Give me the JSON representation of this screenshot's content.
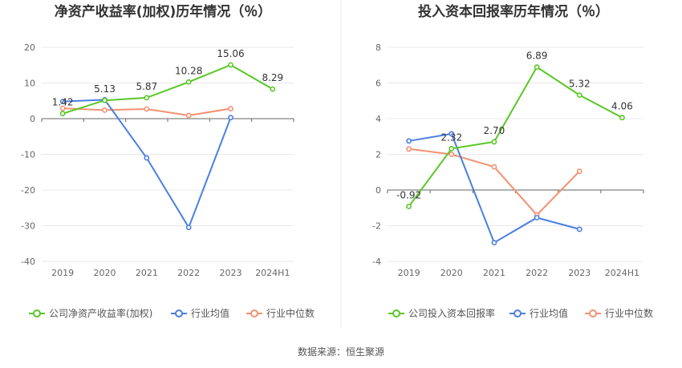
{
  "source": "数据来源：恒生聚源",
  "colors": {
    "company": "#5ac725",
    "avg": "#4a7fe0",
    "median": "#f39171",
    "axis": "#666666",
    "grid": "#e8e8e8",
    "label": "#333333"
  },
  "chart_data": [
    {
      "type": "line",
      "title": "净资产收益率(加权)历年情况（％）",
      "categories": [
        "2019",
        "2020",
        "2021",
        "2022",
        "2023",
        "2024H1"
      ],
      "ylim": [
        -40,
        20
      ],
      "yticks": [
        20,
        10,
        0,
        -10,
        -20,
        -30,
        -40
      ],
      "series": [
        {
          "name": "公司净资产收益率(加权)",
          "color_key": "company",
          "values": [
            1.42,
            5.13,
            5.87,
            10.28,
            15.06,
            8.29
          ],
          "labels": [
            "1.42",
            "5.13",
            "5.87",
            "10.28",
            "15.06",
            "8.29"
          ]
        },
        {
          "name": "行业均值",
          "color_key": "avg",
          "values": [
            4.8,
            5.3,
            -11.0,
            -30.5,
            0.3,
            null
          ]
        },
        {
          "name": "行业中位数",
          "color_key": "median",
          "values": [
            2.9,
            2.4,
            2.7,
            0.9,
            2.8,
            null
          ]
        }
      ]
    },
    {
      "type": "line",
      "title": "投入资本回报率历年情况（％）",
      "categories": [
        "2019",
        "2020",
        "2021",
        "2022",
        "2023",
        "2024H1"
      ],
      "ylim": [
        -4,
        8
      ],
      "yticks": [
        8,
        6,
        4,
        2,
        0,
        -2,
        -4
      ],
      "series": [
        {
          "name": "公司投入资本回报率",
          "color_key": "company",
          "values": [
            -0.92,
            2.32,
            2.7,
            6.89,
            5.32,
            4.06
          ],
          "labels": [
            "-0.92",
            "2.32",
            "2.70",
            "6.89",
            "5.32",
            "4.06"
          ]
        },
        {
          "name": "行业均值",
          "color_key": "avg",
          "values": [
            2.75,
            3.15,
            -2.95,
            -1.55,
            -2.2,
            null
          ]
        },
        {
          "name": "行业中位数",
          "color_key": "median",
          "values": [
            2.3,
            2.0,
            1.3,
            -1.4,
            1.05,
            null
          ]
        }
      ]
    }
  ]
}
